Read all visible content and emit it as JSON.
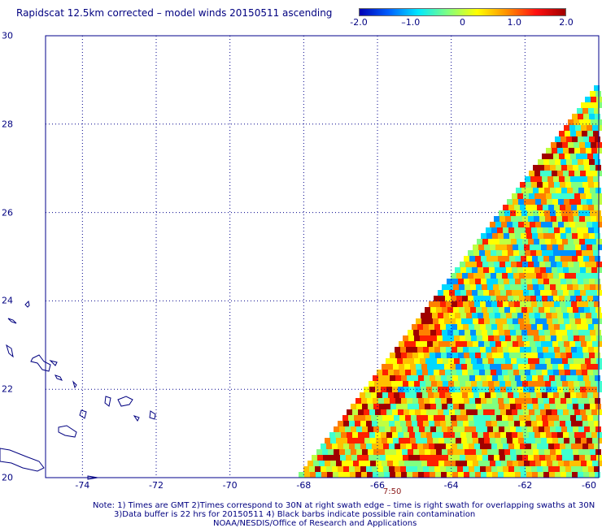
{
  "title": "Rapidscat 12.5km corrected – model winds 20150511 ascending",
  "colorbar": {
    "min": -2.0,
    "max": 2.0,
    "ticks": [
      "-2.0",
      "–1.0",
      "0",
      "1.0",
      "2.0"
    ],
    "tick_values": [
      -2.0,
      -1.0,
      0,
      1.0,
      2.0
    ],
    "colors": [
      "#0000b4",
      "#0060ff",
      "#00e8ff",
      "#80ff80",
      "#ffff00",
      "#ff9000",
      "#ff1010",
      "#a00000"
    ]
  },
  "map": {
    "lat_range": [
      20,
      30
    ],
    "lon_range": [
      -75,
      -60
    ],
    "lat_ticks": [
      "20",
      "22",
      "24",
      "26",
      "28",
      "30"
    ],
    "lat_values": [
      20,
      22,
      24,
      26,
      28,
      30
    ],
    "lon_ticks": [
      "-74",
      "-72",
      "-70",
      "-68",
      "-66",
      "-64",
      "-62",
      "-60"
    ],
    "lon_values": [
      -74,
      -72,
      -70,
      -68,
      -66,
      -64,
      -62,
      -60
    ],
    "grid_color": "#00008b",
    "coast_color": "#000080",
    "swath_time": "7:50",
    "swath_time_lon": -65.6
  },
  "notes": [
    "Note: 1) Times are GMT 2)Times correspond to 30N at right swath edge – time is right swath for overlapping swaths at 30N",
    "3)Data buffer is 22 hrs for 20150511 4) Black barbs indicate possible rain contamination",
    "NOAA/NESDIS/Office of Research and Applications"
  ]
}
